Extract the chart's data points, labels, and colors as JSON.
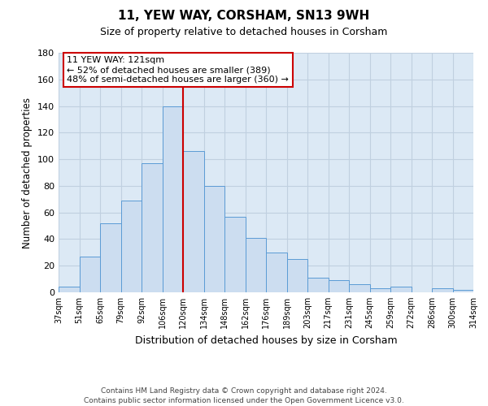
{
  "title": "11, YEW WAY, CORSHAM, SN13 9WH",
  "subtitle": "Size of property relative to detached houses in Corsham",
  "xlabel": "Distribution of detached houses by size in Corsham",
  "ylabel": "Number of detached properties",
  "bar_labels": [
    "37sqm",
    "51sqm",
    "65sqm",
    "79sqm",
    "92sqm",
    "106sqm",
    "120sqm",
    "134sqm",
    "148sqm",
    "162sqm",
    "176sqm",
    "189sqm",
    "203sqm",
    "217sqm",
    "231sqm",
    "245sqm",
    "259sqm",
    "272sqm",
    "286sqm",
    "300sqm",
    "314sqm"
  ],
  "bar_heights": [
    4,
    27,
    52,
    69,
    97,
    140,
    106,
    80,
    57,
    41,
    30,
    25,
    11,
    9,
    6,
    3,
    4,
    0,
    3,
    2
  ],
  "bar_color": "#ccddf0",
  "bar_edge_color": "#5b9bd5",
  "ax_bg_color": "#dce9f5",
  "ylim": [
    0,
    180
  ],
  "yticks": [
    0,
    20,
    40,
    60,
    80,
    100,
    120,
    140,
    160,
    180
  ],
  "vline_color": "#cc0000",
  "annotation_title": "11 YEW WAY: 121sqm",
  "annotation_line1": "← 52% of detached houses are smaller (389)",
  "annotation_line2": "48% of semi-detached houses are larger (360) →",
  "annotation_box_color": "#ffffff",
  "annotation_box_edge": "#cc0000",
  "footer_line1": "Contains HM Land Registry data © Crown copyright and database right 2024.",
  "footer_line2": "Contains public sector information licensed under the Open Government Licence v3.0.",
  "background_color": "#ffffff",
  "grid_color": "#c0d0e0"
}
